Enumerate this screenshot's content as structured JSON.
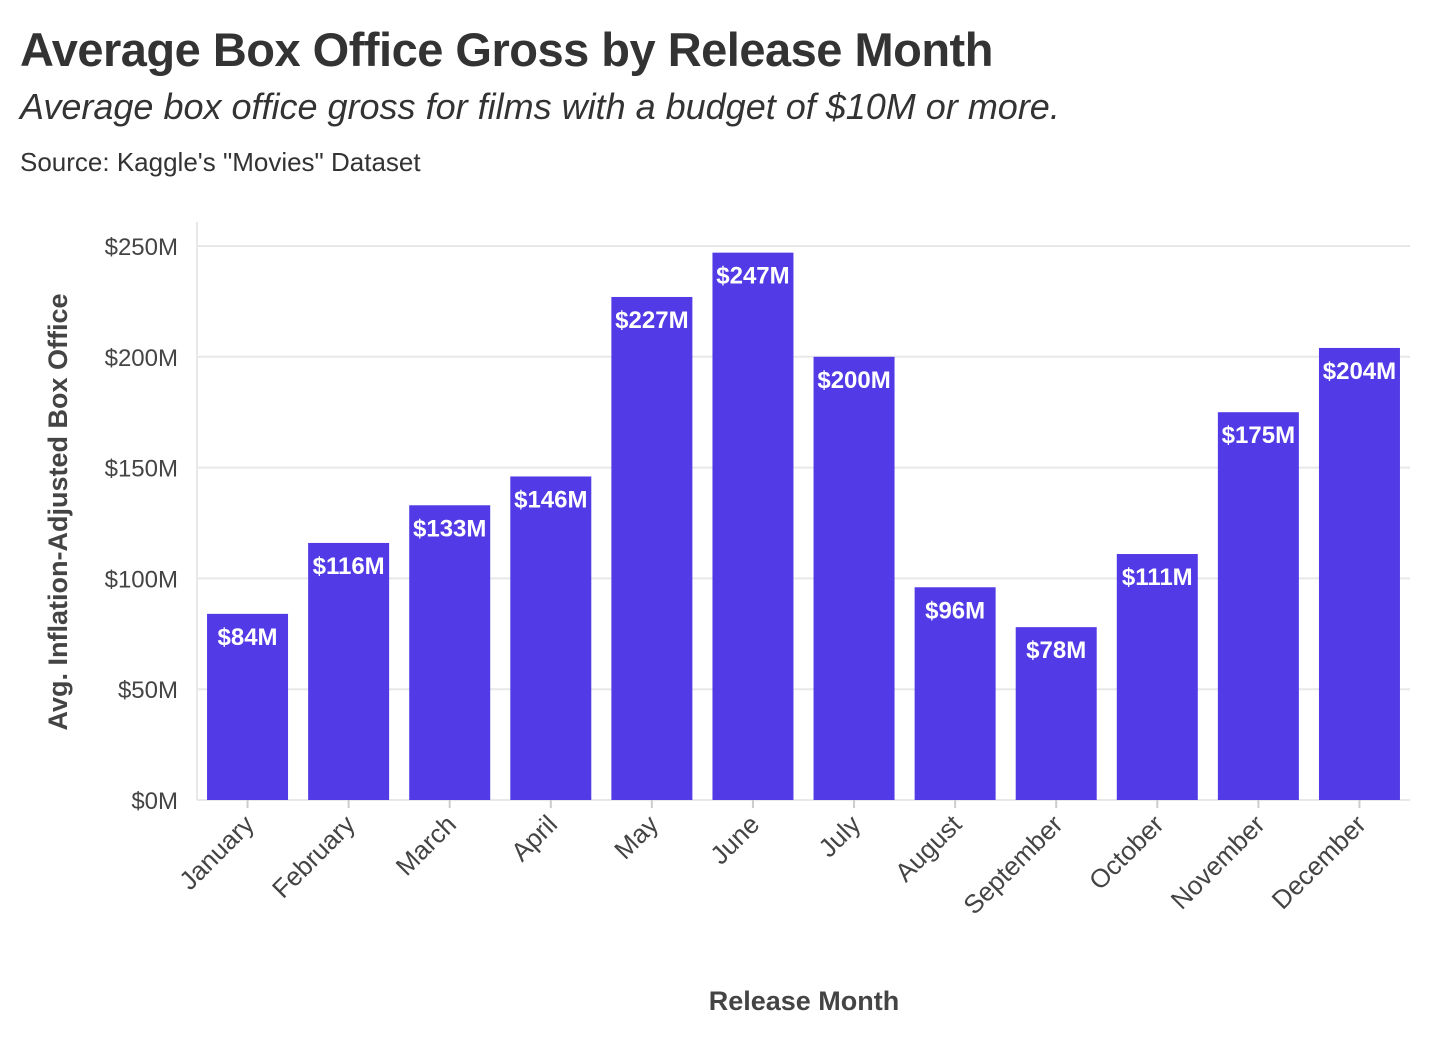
{
  "header": {
    "title": "Average Box Office Gross by Release Month",
    "subtitle": "Average box office gross for films with a budget of $10M or more.",
    "source": "Source: Kaggle's \"Movies\" Dataset"
  },
  "colors": {
    "bar": "#523be6",
    "grid": "#e8e8e8",
    "text": "#333333"
  },
  "chart_data": {
    "type": "bar",
    "categories": [
      "January",
      "February",
      "March",
      "April",
      "May",
      "June",
      "July",
      "August",
      "September",
      "October",
      "November",
      "December"
    ],
    "values": [
      84,
      116,
      133,
      146,
      227,
      247,
      200,
      96,
      78,
      111,
      175,
      204
    ],
    "data_labels": [
      "$84M",
      "$116M",
      "$133M",
      "$146M",
      "$227M",
      "$247M",
      "$200M",
      "$96M",
      "$78M",
      "$111M",
      "$175M",
      "$204M"
    ],
    "xlabel": "Release Month",
    "ylabel": "Avg. Inflation-Adjusted Box Office",
    "ylim": [
      0,
      250
    ],
    "yticks": [
      0,
      50,
      100,
      150,
      200,
      250
    ],
    "ytick_labels": [
      "$0M",
      "$50M",
      "$100M",
      "$150M",
      "$200M",
      "$250M"
    ],
    "unit": "millions USD",
    "grid": true,
    "legend": "none"
  }
}
